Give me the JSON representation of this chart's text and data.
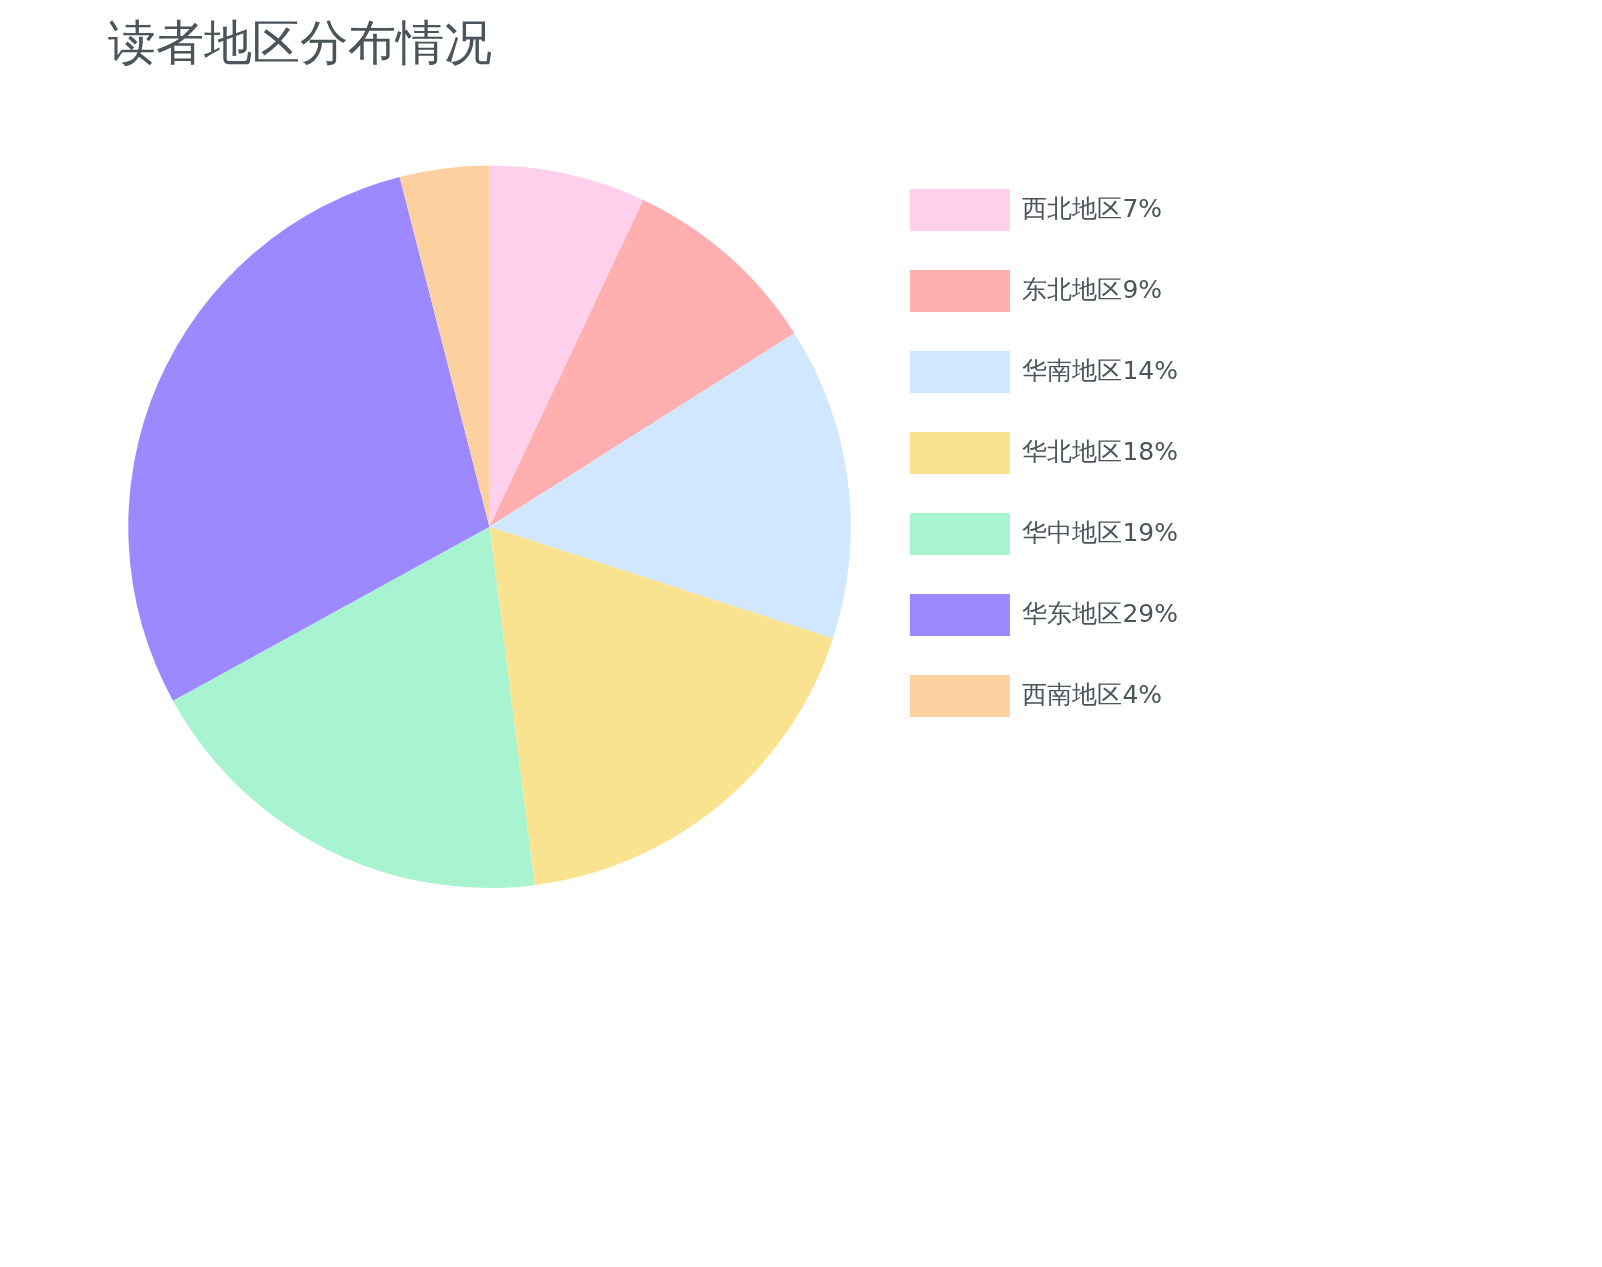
{
  "chart_data": {
    "type": "pie",
    "title": "读者地区分布情况",
    "categories": [
      "西北地区7%",
      "东北地区9%",
      "华南地区14%",
      "华北地区18%",
      "华中地区19%",
      "华东地区29%",
      "西南地区4%"
    ],
    "values": [
      7,
      9,
      14,
      18,
      19,
      29,
      4
    ],
    "colors": [
      "#ffd0ec",
      "#ffafb0",
      "#d1e7ff",
      "#fae390",
      "#a8f4d0",
      "#9c89ff",
      "#fdd0a0"
    ],
    "legend": "right"
  }
}
